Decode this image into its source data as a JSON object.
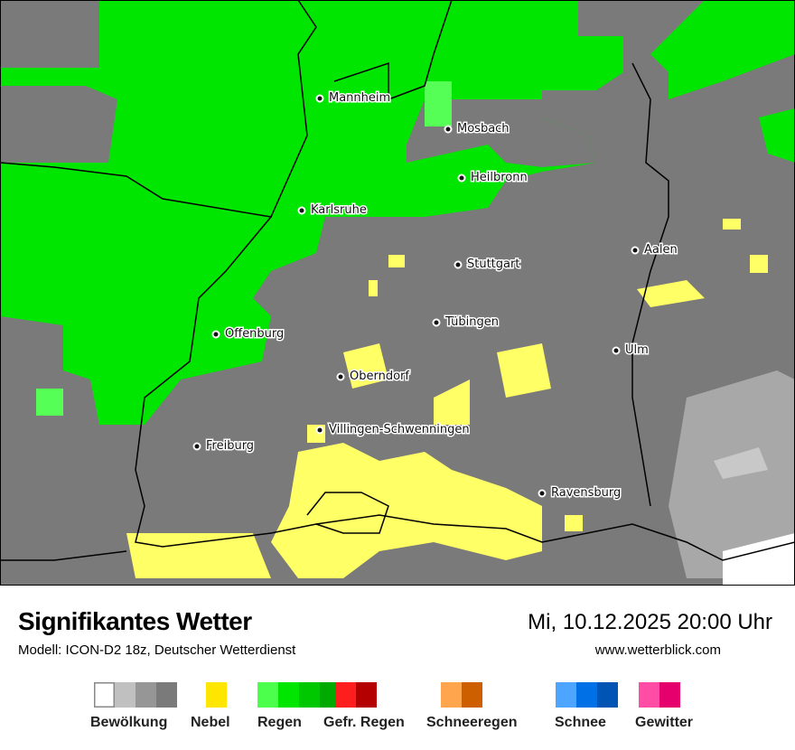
{
  "title": "Signifikantes Wetter",
  "model": "Modell: ICON-D2 18z, Deutscher Wetterdienst",
  "datetime": "Mi, 10.12.2025 20:00 Uhr",
  "website": "www.wetterblick.com",
  "map": {
    "colors": {
      "cloud": "#7a7a7a",
      "rain": "#00e600",
      "rain_light": "#55ff55",
      "fog": "#ffff66",
      "cloud_light": "#a8a8a8",
      "clear": "#ffffff"
    },
    "cities": [
      "Mannheim",
      "Mosbach",
      "Heilbronn",
      "Karlsruhe",
      "Aalen",
      "Stuttgart",
      "Tübingen",
      "Offenburg",
      "Ulm",
      "Oberndorf",
      "Villingen-Schwenningen",
      "Freiburg",
      "Ravensburg"
    ]
  },
  "legend": [
    {
      "label": "Bewölkung",
      "colors": [
        "#ffffff",
        "#c0c0c0",
        "#969696",
        "#7a7a7a"
      ]
    },
    {
      "label": "Nebel",
      "colors": [
        "#ffe600"
      ]
    },
    {
      "label": "Regen",
      "colors": [
        "#4dff4d",
        "#00e600",
        "#00c800",
        "#00aa00"
      ]
    },
    {
      "label": "Gefr. Regen",
      "colors": [
        "#ff1e1e",
        "#b40000"
      ]
    },
    {
      "label": "Schneeregen",
      "colors": [
        "#ffa54d",
        "#cd5f00"
      ]
    },
    {
      "label": "Schnee",
      "colors": [
        "#4da5ff",
        "#0070e6",
        "#0055b4"
      ]
    },
    {
      "label": "Gewitter",
      "colors": [
        "#ff4da5",
        "#e6006e"
      ]
    }
  ]
}
